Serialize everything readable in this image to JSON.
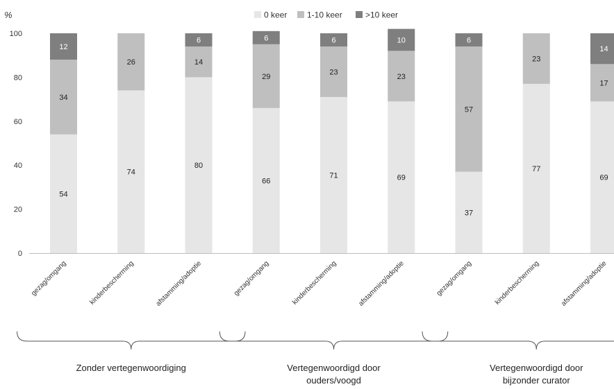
{
  "chart_data": {
    "type": "bar",
    "stacked": true,
    "y_unit": "%",
    "ylim": [
      0,
      100
    ],
    "yticks": [
      0,
      20,
      40,
      60,
      80,
      100
    ],
    "grid": false,
    "legend_position": "top-center",
    "categories": [
      "gezag/omgang",
      "kinderbescherming",
      "afstamming/adoptie",
      "gezag/omgang",
      "kinderbescherming",
      "afstamming/adoptie",
      "gezag/omgang",
      "kinderbescherming",
      "afstamming/adoptie"
    ],
    "series": [
      {
        "name": "0 keer",
        "color": "#e6e6e6",
        "label_color": "#222222",
        "values": [
          54,
          74,
          80,
          66,
          71,
          69,
          37,
          77,
          69
        ]
      },
      {
        "name": "1-10 keer",
        "color": "#bfbfbf",
        "label_color": "#222222",
        "values": [
          34,
          26,
          14,
          29,
          23,
          23,
          57,
          23,
          17
        ]
      },
      {
        "name": ">10 keer",
        "color": "#7f7f7f",
        "label_color": "#ffffff",
        "values": [
          12,
          0,
          6,
          6,
          6,
          10,
          6,
          0,
          14
        ]
      }
    ],
    "groups": [
      {
        "label_lines": [
          "Zonder vertegenwoordiging"
        ],
        "start": 0,
        "end": 2
      },
      {
        "label_lines": [
          "Vertegenwoordigd door",
          "ouders/voogd"
        ],
        "start": 3,
        "end": 5
      },
      {
        "label_lines": [
          "Vertegenwoordigd door",
          "bijzonder curator"
        ],
        "start": 6,
        "end": 8
      }
    ]
  }
}
